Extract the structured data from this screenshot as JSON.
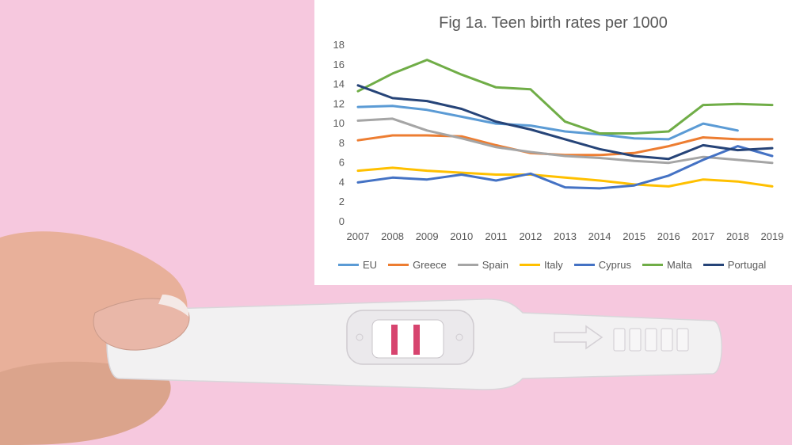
{
  "chart_data": {
    "type": "line",
    "title": "Fig 1a. Teen birth rates per 1000",
    "xlabel": "",
    "ylabel": "",
    "x": [
      "2007",
      "2008",
      "2009",
      "2010",
      "2011",
      "2012",
      "2013",
      "2014",
      "2015",
      "2016",
      "2017",
      "2018",
      "2019"
    ],
    "ylim": [
      0,
      18
    ],
    "yticks": [
      0,
      2,
      4,
      6,
      8,
      10,
      12,
      14,
      16,
      18
    ],
    "grid": false,
    "legend_position": "bottom",
    "series": [
      {
        "name": "EU",
        "color": "#5b9bd5",
        "values": [
          11.7,
          11.8,
          11.4,
          10.7,
          10.0,
          9.8,
          9.2,
          8.9,
          8.5,
          8.4,
          10.0,
          9.3,
          null
        ]
      },
      {
        "name": "Greece",
        "color": "#ed7d31",
        "values": [
          8.3,
          8.8,
          8.8,
          8.7,
          7.8,
          7.0,
          6.8,
          6.8,
          7.0,
          7.7,
          8.6,
          8.4,
          8.4
        ]
      },
      {
        "name": "Spain",
        "color": "#a5a5a5",
        "values": [
          10.3,
          10.5,
          9.3,
          8.5,
          7.6,
          7.1,
          6.7,
          6.5,
          6.2,
          6.0,
          6.6,
          6.3,
          6.0
        ]
      },
      {
        "name": "Italy",
        "color": "#ffc000",
        "values": [
          5.2,
          5.5,
          5.2,
          5.0,
          4.8,
          4.8,
          4.5,
          4.2,
          3.8,
          3.6,
          4.3,
          4.1,
          3.6
        ]
      },
      {
        "name": "Cyprus",
        "color": "#4472c4",
        "values": [
          4.0,
          4.5,
          4.3,
          4.8,
          4.2,
          4.9,
          3.5,
          3.4,
          3.7,
          4.7,
          6.3,
          7.7,
          6.7
        ]
      },
      {
        "name": "Malta",
        "color": "#70ad47",
        "values": [
          13.3,
          15.1,
          16.5,
          15.0,
          13.7,
          13.5,
          10.2,
          9.0,
          9.0,
          9.2,
          11.9,
          12.0,
          11.9
        ]
      },
      {
        "name": "Portugal",
        "color": "#264478",
        "values": [
          13.9,
          12.6,
          12.3,
          11.5,
          10.2,
          9.4,
          8.4,
          7.4,
          6.7,
          6.4,
          7.8,
          7.3,
          7.5
        ]
      }
    ]
  },
  "photo": {
    "subject": "hand-holding-pregnancy-test",
    "background_color": "#f6c8de"
  }
}
